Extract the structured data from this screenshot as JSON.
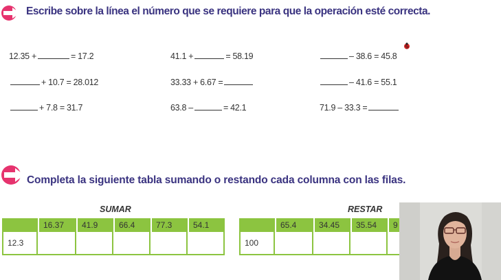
{
  "section1": {
    "heading": "Escribe sobre la línea el número que se requiere para que la operación esté correcta.",
    "equations": {
      "r1c1": {
        "pre": "12.35 +",
        "post": "= 17.2"
      },
      "r1c2": {
        "pre": "41.1 +",
        "post": "= 58.19"
      },
      "r1c3": {
        "pre": "",
        "post": "– 38.6 = 45.8"
      },
      "r2c1": {
        "pre": "",
        "post": "+ 10.7 = 28.012"
      },
      "r2c2": {
        "pre": "33.33 + 6.67 =",
        "post": ""
      },
      "r2c3": {
        "pre": "",
        "post": "– 41.6 = 55.1"
      },
      "r3c1": {
        "pre": "",
        "post": "+ 7.8 = 31.7"
      },
      "r3c2": {
        "pre": "63.8 –",
        "post": "= 42.1"
      },
      "r3c3": {
        "pre": "71.9 – 33.3 =",
        "post": ""
      }
    }
  },
  "section2": {
    "heading": "Completa la siguiente tabla sumando o restando cada columna con las filas.",
    "sumar": {
      "title": "SUMAR",
      "columns": [
        "16.37",
        "41.9",
        "66.4",
        "77.3",
        "54.1"
      ],
      "row_label": "12.3"
    },
    "restar": {
      "title": "RESTAR",
      "columns": [
        "65.4",
        "34.45",
        "35.54",
        "9"
      ],
      "row_label": "100"
    }
  },
  "colors": {
    "heading": "#3a3380",
    "arrow": "#e6336e",
    "table_green": "#8cc440"
  },
  "icons": {
    "arrow": "pink-arrow-icon",
    "ladybug": "ladybug-icon",
    "webcam": "webcam-overlay"
  }
}
